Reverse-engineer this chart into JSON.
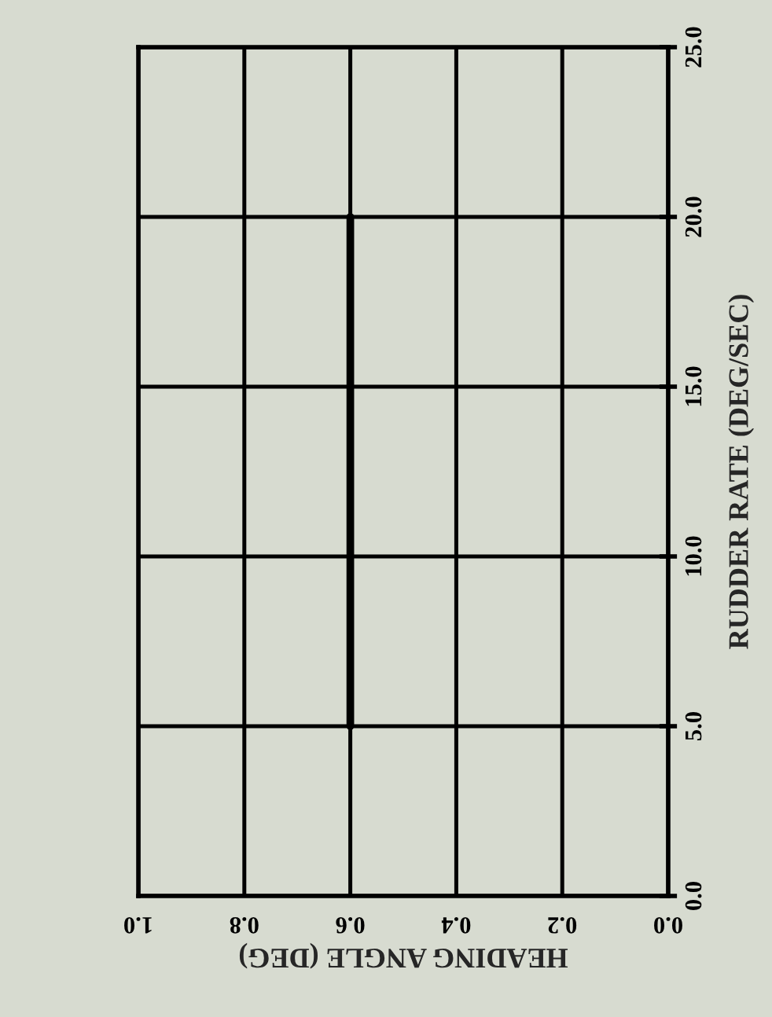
{
  "chart_data": {
    "type": "line",
    "xlabel": "HEADING ANGLE (DEG)",
    "ylabel": "RUDDER RATE (DEG/SEC)",
    "series": [
      {
        "color": "#000000",
        "x": [
          0.6,
          0.6
        ],
        "values": [
          5.0,
          20.0
        ]
      }
    ],
    "xlim": [
      1.0,
      0.0
    ],
    "xticks": [
      {
        "value": 1.0,
        "label": "1.0"
      },
      {
        "value": 0.8,
        "label": "0.8"
      },
      {
        "value": 0.6,
        "label": "0.6"
      },
      {
        "value": 0.4,
        "label": "0.4"
      },
      {
        "value": 0.2,
        "label": "0.2"
      },
      {
        "value": 0.0,
        "label": "0.0"
      }
    ],
    "ylim": [
      0.0,
      25.0
    ],
    "yticks": [
      {
        "value": 0.0,
        "label": "0.0"
      },
      {
        "value": 5.0,
        "label": "5.0"
      },
      {
        "value": 10.0,
        "label": "10.0"
      },
      {
        "value": 15.0,
        "label": "15.0"
      },
      {
        "value": 20.0,
        "label": "20.0"
      },
      {
        "value": 25.0,
        "label": "25.0"
      }
    ],
    "grid": true,
    "marker": "none",
    "line_style": "solid"
  }
}
